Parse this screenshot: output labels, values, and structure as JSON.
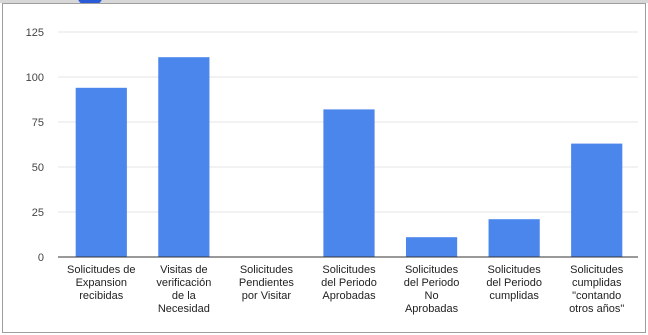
{
  "chart_data": {
    "type": "bar",
    "title": "",
    "xlabel": "",
    "ylabel": "",
    "categories": [
      [
        "Solicitudes de",
        "Expansion",
        "recibidas"
      ],
      [
        "Visitas de",
        "verificación",
        "de la",
        "Necesidad"
      ],
      [
        "Solicitudes",
        "Pendientes",
        "por Visitar"
      ],
      [
        "Solicitudes",
        "del Periodo",
        "Aprobadas"
      ],
      [
        "Solicitudes",
        "del Periodo",
        "No",
        "Aprobadas"
      ],
      [
        "Solicitudes",
        "del Periodo",
        "cumplidas"
      ],
      [
        "Solicitudes",
        "cumplidas",
        "\"contando",
        "otros años\""
      ]
    ],
    "values": [
      94,
      111,
      0,
      82,
      11,
      21,
      63
    ],
    "ylim": [
      0,
      125
    ],
    "yticks": [
      0,
      25,
      50,
      75,
      100,
      125
    ],
    "grid": true,
    "legend": "none",
    "colors": {
      "bar": "#4a86ec",
      "grid": "#e4e4e4",
      "baseline": "#333333"
    }
  }
}
